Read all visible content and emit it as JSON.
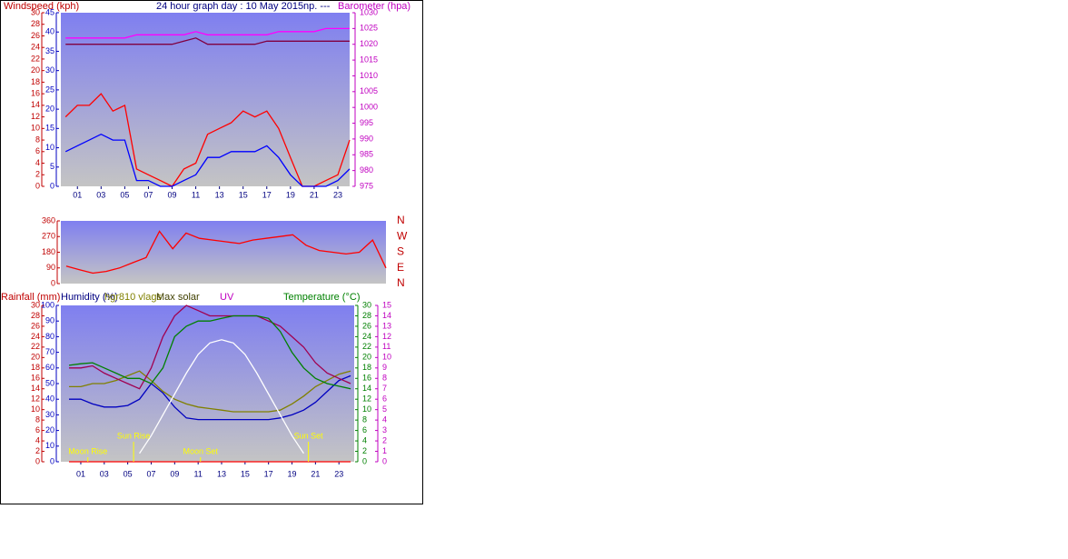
{
  "chart_data": [
    {
      "type": "line",
      "title": "24 hour graph day : 10 May 2015np. ---",
      "y_label": "Windspeed (kph)",
      "y2_label": "Barometer (hpa)",
      "x": [
        0,
        1,
        2,
        3,
        4,
        5,
        6,
        7,
        8,
        9,
        10,
        11,
        12,
        13,
        14,
        15,
        16,
        17,
        18,
        19,
        20,
        21,
        22,
        23,
        24
      ],
      "xlim": [
        -0.4,
        24
      ],
      "xticks": [
        {
          "value": 1,
          "label": "01"
        },
        {
          "value": 3,
          "label": "03"
        },
        {
          "value": 5,
          "label": "05"
        },
        {
          "value": 7,
          "label": "07"
        },
        {
          "value": 9,
          "label": "09"
        },
        11,
        13,
        15,
        17,
        19,
        21,
        23
      ],
      "ylim": [
        0,
        30
      ],
      "yticks": [
        0,
        2,
        4,
        6,
        8,
        10,
        12,
        14,
        16,
        18,
        20,
        22,
        24,
        26,
        28,
        30
      ],
      "y3lim": [
        0,
        45
      ],
      "y3ticks": [
        0,
        5,
        10,
        15,
        20,
        25,
        30,
        35,
        40,
        45
      ],
      "y2lim": [
        975,
        1030
      ],
      "y2ticks": [
        975,
        980,
        985,
        990,
        995,
        1000,
        1005,
        1010,
        1015,
        1020,
        1025,
        1030
      ],
      "series": [
        {
          "color": "#ff0000",
          "axis": "y",
          "values": [
            12,
            14,
            14,
            16,
            13,
            14,
            3,
            2,
            1,
            0,
            3,
            4,
            9,
            10,
            11,
            13,
            12,
            13,
            10,
            5,
            0,
            0,
            1,
            2,
            8
          ]
        },
        {
          "color": "#0000ff",
          "axis": "y",
          "values": [
            6,
            7,
            8,
            9,
            8,
            8,
            1,
            1,
            0,
            0,
            1,
            2,
            5,
            5,
            6,
            6,
            6,
            7,
            5,
            2,
            0,
            0,
            0,
            1,
            3
          ]
        },
        {
          "color": "#ff00ff",
          "axis": "y2",
          "values": [
            1022,
            1022,
            1022,
            1022,
            1022,
            1022,
            1023,
            1023,
            1023,
            1023,
            1023,
            1024,
            1023,
            1023,
            1023,
            1023,
            1023,
            1023,
            1024,
            1024,
            1024,
            1024,
            1025,
            1025,
            1025
          ]
        },
        {
          "color": "#800040",
          "axis": "y2",
          "values": [
            1020,
            1020,
            1020,
            1020,
            1020,
            1020,
            1020,
            1020,
            1020,
            1020,
            1021,
            1022,
            1020,
            1020,
            1020,
            1020,
            1020,
            1021,
            1021,
            1021,
            1021,
            1021,
            1021,
            1021,
            1021
          ]
        }
      ]
    },
    {
      "type": "line",
      "x": [
        0,
        1,
        2,
        3,
        4,
        5,
        6,
        7,
        8,
        9,
        10,
        11,
        12,
        13,
        14,
        15,
        16,
        17,
        18,
        19,
        20,
        21,
        22,
        23,
        24
      ],
      "xlim": [
        -0.4,
        24
      ],
      "ylim": [
        0,
        360
      ],
      "yticks": [
        0,
        90,
        180,
        270,
        360
      ],
      "y2ticks": [
        {
          "value": 0,
          "label": "N"
        },
        {
          "value": 90,
          "label": "E"
        },
        {
          "value": 180,
          "label": "S"
        },
        {
          "value": 270,
          "label": "W"
        },
        {
          "value": 360,
          "label": "N"
        }
      ],
      "series": [
        {
          "color": "#ff0000",
          "axis": "y",
          "values": [
            100,
            80,
            60,
            70,
            90,
            120,
            150,
            300,
            200,
            290,
            260,
            250,
            240,
            230,
            250,
            260,
            270,
            280,
            220,
            190,
            180,
            170,
            180,
            250,
            90
          ]
        }
      ]
    },
    {
      "type": "line",
      "x": [
        0,
        1,
        2,
        3,
        4,
        5,
        6,
        7,
        8,
        9,
        10,
        11,
        12,
        13,
        14,
        15,
        16,
        17,
        18,
        19,
        20,
        21,
        22,
        23,
        24
      ],
      "xlim": [
        -0.7,
        24.3
      ],
      "xticks": [
        {
          "value": 1,
          "label": "01"
        },
        {
          "value": 3,
          "label": "03"
        },
        {
          "value": 5,
          "label": "05"
        },
        {
          "value": 7,
          "label": "07"
        },
        {
          "value": 9,
          "label": "09"
        },
        11,
        13,
        15,
        17,
        19,
        21,
        23
      ],
      "ylim": [
        0,
        30
      ],
      "yticks": [
        0,
        2,
        4,
        6,
        8,
        10,
        12,
        14,
        16,
        18,
        20,
        22,
        24,
        26,
        28,
        30
      ],
      "y3lim": [
        0,
        100
      ],
      "y3ticks": [
        0,
        10,
        20,
        30,
        40,
        50,
        60,
        70,
        80,
        90,
        100
      ],
      "y2lim": [
        0,
        30
      ],
      "y2ticks": [
        0,
        2,
        4,
        6,
        8,
        10,
        12,
        14,
        16,
        18,
        20,
        22,
        24,
        26,
        28,
        30
      ],
      "y4lim": [
        0,
        15
      ],
      "y4ticks": [
        0,
        1,
        2,
        3,
        4,
        5,
        6,
        7,
        8,
        9,
        10,
        11,
        12,
        13,
        14,
        15
      ],
      "series": [
        {
          "name": "Rainfall (mm)",
          "color": "#ff0000",
          "axis": "y",
          "values": [
            0,
            0,
            0,
            0,
            0,
            0,
            0,
            0,
            0,
            0,
            0,
            0,
            0,
            0,
            0,
            0,
            0,
            0,
            0,
            0,
            0,
            0,
            0,
            0,
            0
          ]
        },
        {
          "name": "Humidity (%)",
          "color": "#0000c0",
          "axis": "y3",
          "values": [
            40,
            40,
            37,
            35,
            35,
            36,
            40,
            50,
            44,
            35,
            28,
            27,
            27,
            27,
            27,
            27,
            27,
            27,
            28,
            30,
            33,
            38,
            45,
            52,
            55
          ]
        },
        {
          "name": "hgr810 vlags",
          "color": "#808000",
          "axis": "y3",
          "values": [
            48,
            48,
            50,
            50,
            52,
            55,
            58,
            52,
            45,
            40,
            37,
            35,
            34,
            33,
            32,
            32,
            32,
            32,
            33,
            37,
            42,
            48,
            52,
            56,
            58
          ]
        },
        {
          "name": "Max solar",
          "color": "#ffffff",
          "axis": "y4",
          "values": [
            null,
            null,
            null,
            null,
            null,
            null,
            0.8,
            2.5,
            4.5,
            6.5,
            8.5,
            10.3,
            11.4,
            11.7,
            11.4,
            10.3,
            8.5,
            6.5,
            4.5,
            2.5,
            0.8,
            null,
            null,
            null,
            null
          ]
        },
        {
          "name": "UV",
          "color": "#a00050",
          "axis": "y4",
          "values": [
            9,
            9,
            9.2,
            8.5,
            8,
            7.5,
            7,
            9,
            12,
            14,
            15,
            14.5,
            14,
            14,
            14,
            14,
            14,
            13.5,
            13,
            12,
            11,
            9.5,
            8.5,
            8,
            7.5
          ]
        },
        {
          "name": "Temperature (°C)",
          "color": "#008000",
          "axis": "y2",
          "values": [
            18.5,
            18.8,
            19,
            18,
            17,
            16,
            16,
            15,
            18,
            24,
            26,
            27,
            27,
            27.5,
            28,
            28,
            28,
            27.5,
            25,
            21,
            18,
            16,
            15,
            14.5,
            14
          ]
        }
      ],
      "annotations": [
        {
          "x": 1.6,
          "label": "Moon Rise"
        },
        {
          "x": 5.5,
          "label": "Sun Rise"
        },
        {
          "x": 11.2,
          "label": "Moon Set"
        },
        {
          "x": 20.4,
          "label": "Sun Set"
        }
      ]
    }
  ]
}
